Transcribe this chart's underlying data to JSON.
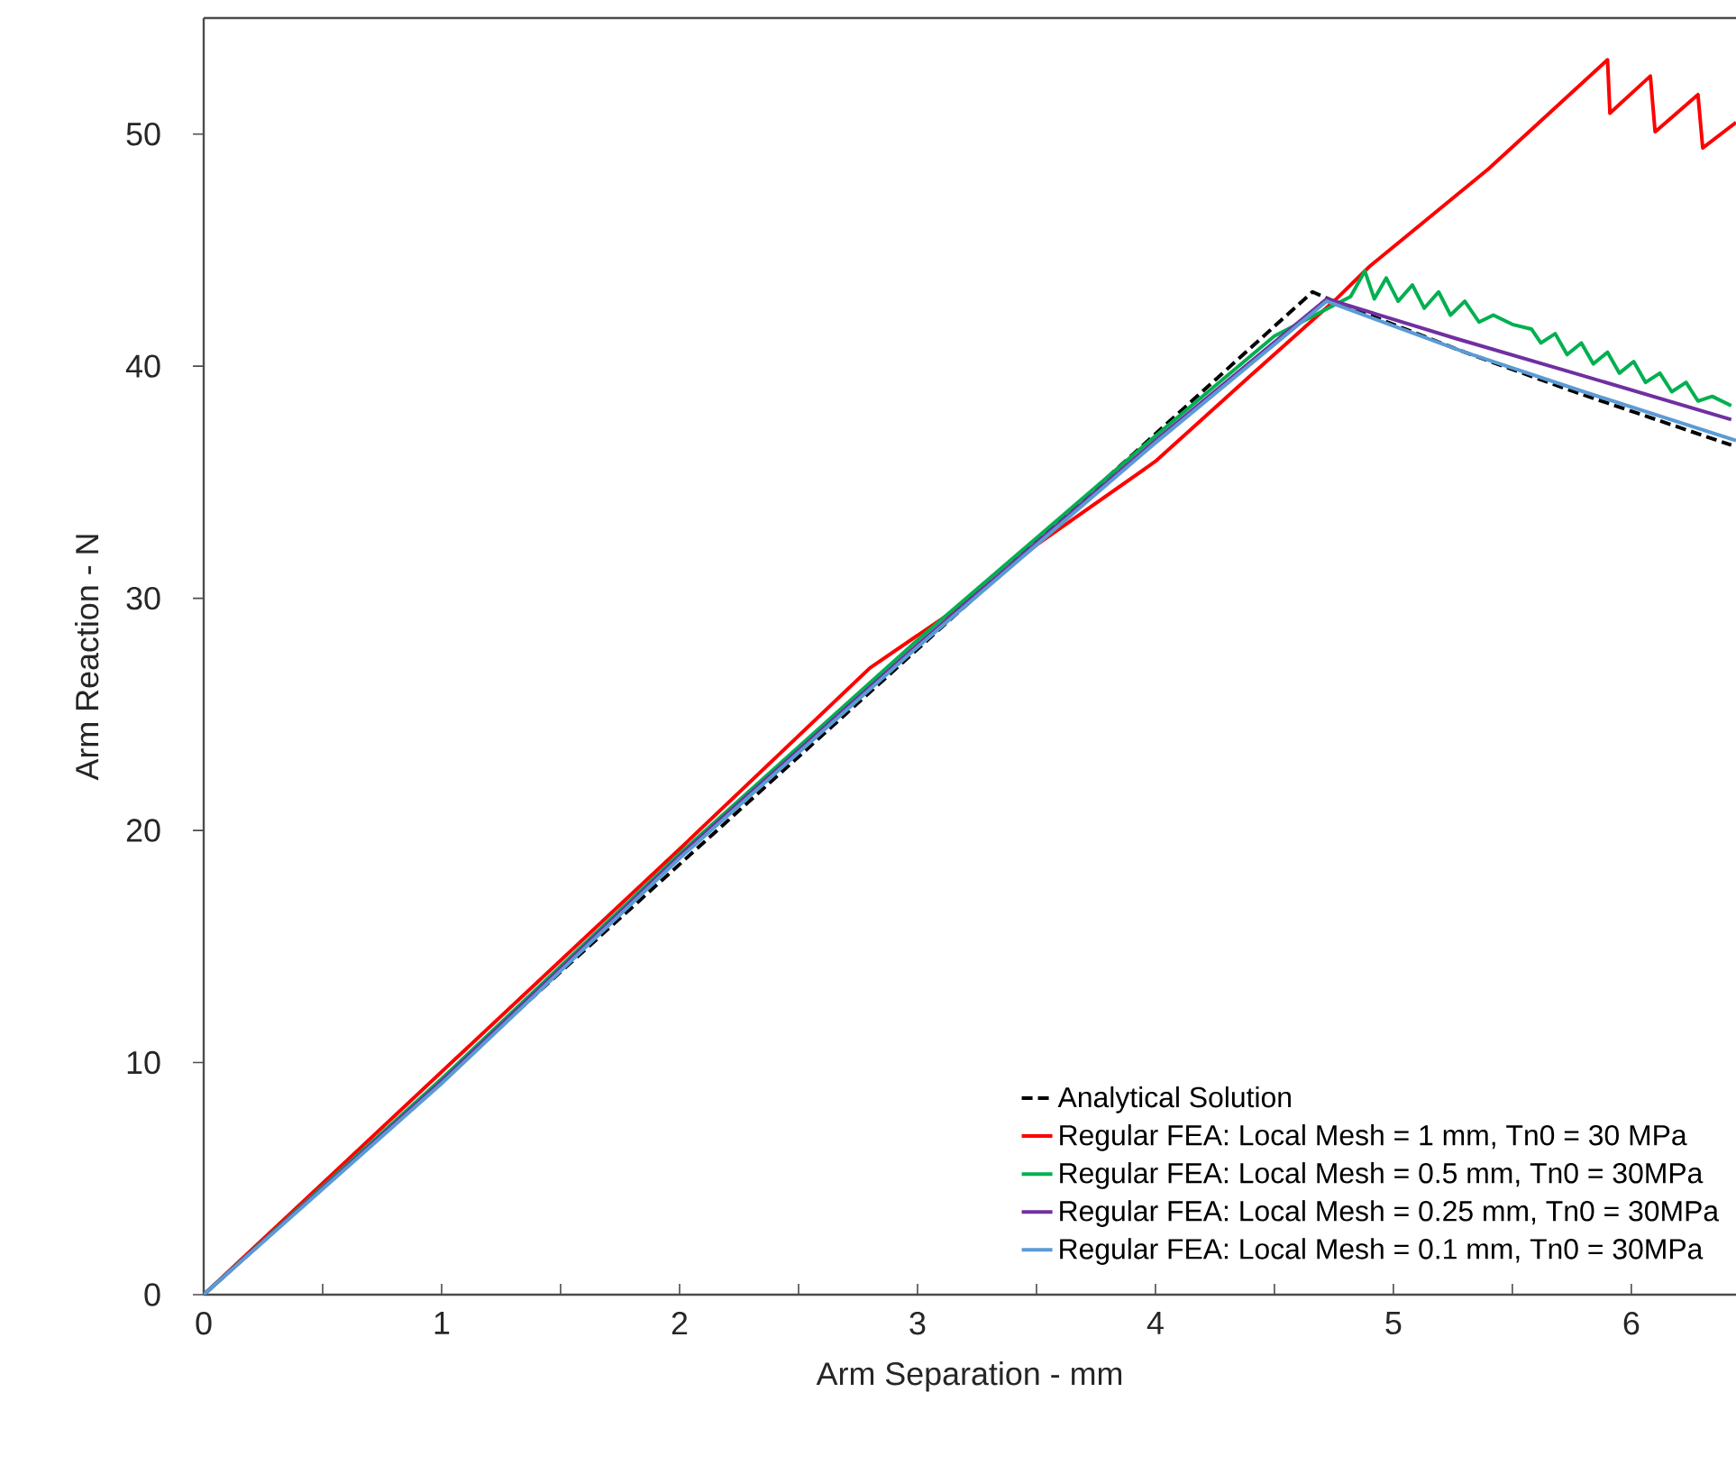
{
  "chart_data": {
    "type": "line",
    "xlabel": "Arm Separation - mm",
    "ylabel": "Arm Reaction - N",
    "xlim": [
      0,
      6.44
    ],
    "ylim": [
      0,
      55
    ],
    "xticks": [
      0,
      {
        "value": 0.5,
        "label": null
      },
      1,
      {
        "value": 1.5,
        "label": null
      },
      2,
      {
        "value": 2.5,
        "label": null
      },
      3,
      {
        "value": 3.5,
        "label": null
      },
      4,
      {
        "value": 4.5,
        "label": null
      },
      5,
      {
        "value": 5.5,
        "label": null
      },
      6
    ],
    "yticks": [
      0,
      10,
      20,
      30,
      40,
      50
    ],
    "grid": false,
    "legend": "bottom right",
    "marker": "none",
    "series": [
      {
        "name": "Analytical Solution",
        "color": "#000000",
        "line_style": "dashed",
        "x": [
          0,
          4.66,
          4.75,
          5.3,
          5.76,
          6.42
        ],
        "values": [
          0,
          43.2,
          42.8,
          40.6,
          38.9,
          36.6
        ]
      },
      {
        "name": "Regular FEA: Local Mesh = 1 mm, Tn0 = 30 MPa",
        "color": "#ff0000",
        "line_style": "solid",
        "x": [
          0,
          2,
          2.8,
          3.2,
          3.5,
          4,
          4.4,
          4.75,
          4.9,
          5.4,
          5.9,
          5.91,
          6.08,
          6.1,
          6.28,
          6.3,
          6.44
        ],
        "values": [
          0,
          19.2,
          27,
          29.8,
          32.3,
          35.9,
          39.6,
          42.8,
          44.3,
          48.5,
          53.2,
          50.9,
          52.5,
          50.1,
          51.7,
          49.4,
          50.5
        ]
      },
      {
        "name": "Regular FEA: Local Mesh = 0.5 mm, Tn0 = 30MPa",
        "color": "#00b050",
        "line_style": "solid",
        "x": [
          0,
          1,
          2,
          3,
          4,
          4.5,
          4.82,
          4.88,
          4.92,
          4.97,
          5.02,
          5.08,
          5.13,
          5.19,
          5.24,
          5.3,
          5.36,
          5.42,
          5.5,
          5.58,
          5.62,
          5.68,
          5.73,
          5.79,
          5.84,
          5.9,
          5.95,
          6.01,
          6.06,
          6.12,
          6.17,
          6.23,
          6.28,
          6.34,
          6.42
        ],
        "values": [
          0,
          9.3,
          19.0,
          28.2,
          37.0,
          41.3,
          43.0,
          44.1,
          42.9,
          43.8,
          42.8,
          43.5,
          42.5,
          43.2,
          42.2,
          42.8,
          41.9,
          42.2,
          41.8,
          41.6,
          41.0,
          41.4,
          40.5,
          41.0,
          40.1,
          40.6,
          39.7,
          40.2,
          39.3,
          39.7,
          38.9,
          39.3,
          38.5,
          38.7,
          38.3
        ]
      },
      {
        "name": "Regular FEA: Local Mesh = 0.25 mm, Tn0 = 30MPa",
        "color": "#7030a0",
        "line_style": "solid",
        "x": [
          0,
          1,
          2,
          3,
          4,
          4.72,
          5.26,
          5.76,
          6.42
        ],
        "values": [
          0,
          9.2,
          18.9,
          28.0,
          36.8,
          42.9,
          41.2,
          39.7,
          37.7
        ]
      },
      {
        "name": "Regular FEA: Local Mesh = 0.1 mm, Tn0 = 30MPa",
        "color": "#5b9bd5",
        "line_style": "solid",
        "x": [
          0,
          1,
          2,
          3,
          4,
          4.72,
          5.3,
          5.8,
          6.44
        ],
        "values": [
          0,
          9.1,
          18.8,
          27.9,
          36.7,
          42.8,
          40.6,
          38.9,
          36.8
        ]
      }
    ]
  }
}
